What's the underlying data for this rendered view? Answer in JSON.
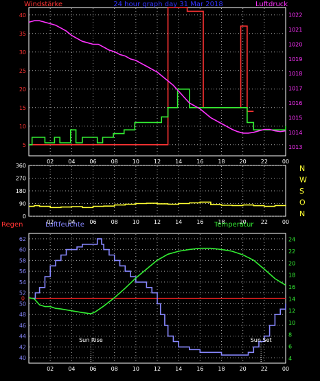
{
  "colors": {
    "background": "#000000",
    "frame": "#ffffff",
    "grid": "#aaaaaa",
    "wind": "#ff3333",
    "pressure": "#ff33ff",
    "green": "#33ee33",
    "direction": "#ffff33",
    "humidity": "#8888ff",
    "rain": "#ff2222",
    "title": "#3333ff",
    "label_red": "#ff3333",
    "label_magenta": "#ff33ff",
    "label_blue": "#8888ff",
    "label_green": "#33ee33",
    "label_yellow": "#ffff33",
    "white": "#ffffff"
  },
  "chart_data": [
    {
      "type": "line",
      "title": "24 hour graph day 31 Mar 2018",
      "left_label": "Windstärke",
      "right_label": "Luftdruck",
      "x_ticks": [
        "02",
        "04",
        "06",
        "08",
        "10",
        "12",
        "14",
        "16",
        "18",
        "20",
        "22",
        "00"
      ],
      "x_range": [
        0,
        24
      ],
      "y_left_ticks": [
        "5",
        "10",
        "15",
        "20",
        "25",
        "30",
        "35",
        "40"
      ],
      "y_left_range": [
        2,
        42
      ],
      "y_right_ticks": [
        "1013",
        "1014",
        "1015",
        "1016",
        "1017",
        "1018",
        "1019",
        "1020",
        "1021",
        "1022"
      ],
      "y_right_range": [
        1012.4,
        1022.5
      ],
      "series": [
        {
          "key": "wind_max",
          "axis": "left",
          "style": "step",
          "points": [
            [
              0,
              5
            ],
            [
              13,
              5
            ],
            [
              13,
              42
            ],
            [
              14.8,
              42
            ],
            [
              14.8,
              41
            ],
            [
              16.3,
              41
            ],
            [
              16.3,
              15
            ],
            [
              19.8,
              15
            ],
            [
              19.8,
              37
            ],
            [
              20.4,
              37
            ],
            [
              20.4,
              14
            ],
            [
              21,
              14
            ]
          ]
        },
        {
          "key": "wind_avg",
          "axis": "left",
          "style": "step",
          "points": [
            [
              0,
              5
            ],
            [
              0.3,
              5
            ],
            [
              0.3,
              7
            ],
            [
              1.5,
              7
            ],
            [
              1.5,
              5.5
            ],
            [
              2.4,
              5.5
            ],
            [
              2.4,
              7
            ],
            [
              2.9,
              7
            ],
            [
              2.9,
              5.5
            ],
            [
              3.9,
              5.5
            ],
            [
              3.9,
              9
            ],
            [
              4.4,
              9
            ],
            [
              4.4,
              5.5
            ],
            [
              5,
              5.5
            ],
            [
              5,
              7
            ],
            [
              6.4,
              7
            ],
            [
              6.4,
              5.5
            ],
            [
              6.9,
              5.5
            ],
            [
              6.9,
              7
            ],
            [
              7.9,
              7
            ],
            [
              7.9,
              8
            ],
            [
              8.9,
              8
            ],
            [
              8.9,
              9
            ],
            [
              9.9,
              9
            ],
            [
              9.9,
              11
            ],
            [
              12.4,
              11
            ],
            [
              12.4,
              12.5
            ],
            [
              13,
              12.5
            ],
            [
              13,
              15
            ],
            [
              13.9,
              15
            ],
            [
              13.9,
              20
            ],
            [
              15,
              20
            ],
            [
              15,
              15
            ],
            [
              20.4,
              15
            ],
            [
              20.4,
              11
            ],
            [
              21,
              11
            ],
            [
              21,
              9
            ],
            [
              24,
              9
            ],
            [
              24,
              10
            ]
          ]
        },
        {
          "key": "pressure",
          "axis": "right",
          "style": "line",
          "points": [
            [
              0,
              1021.5
            ],
            [
              0.5,
              1021.6
            ],
            [
              1,
              1021.6
            ],
            [
              1.5,
              1021.5
            ],
            [
              2,
              1021.4
            ],
            [
              2.5,
              1021.3
            ],
            [
              3,
              1021.1
            ],
            [
              3.5,
              1020.9
            ],
            [
              4,
              1020.6
            ],
            [
              4.5,
              1020.4
            ],
            [
              5,
              1020.2
            ],
            [
              5.5,
              1020.1
            ],
            [
              6,
              1020.0
            ],
            [
              6.5,
              1020.0
            ],
            [
              7,
              1019.8
            ],
            [
              7.5,
              1019.6
            ],
            [
              8,
              1019.5
            ],
            [
              8.5,
              1019.3
            ],
            [
              9,
              1019.2
            ],
            [
              9.5,
              1019.0
            ],
            [
              10,
              1018.9
            ],
            [
              10.5,
              1018.7
            ],
            [
              11,
              1018.5
            ],
            [
              11.5,
              1018.3
            ],
            [
              12,
              1018.1
            ],
            [
              12.5,
              1017.8
            ],
            [
              13,
              1017.5
            ],
            [
              13.5,
              1017.2
            ],
            [
              14,
              1016.8
            ],
            [
              14.5,
              1016.4
            ],
            [
              15,
              1016.0
            ],
            [
              15.5,
              1015.8
            ],
            [
              16,
              1015.6
            ],
            [
              16.5,
              1015.3
            ],
            [
              17,
              1015.0
            ],
            [
              17.5,
              1014.8
            ],
            [
              18,
              1014.6
            ],
            [
              18.5,
              1014.4
            ],
            [
              19,
              1014.2
            ],
            [
              19.5,
              1014.05
            ],
            [
              20,
              1013.95
            ],
            [
              20.5,
              1013.95
            ],
            [
              21,
              1014.0
            ],
            [
              21.5,
              1014.1
            ],
            [
              22,
              1014.2
            ],
            [
              22.5,
              1014.2
            ],
            [
              23,
              1014.1
            ],
            [
              23.5,
              1014.05
            ],
            [
              24,
              1014.1
            ]
          ]
        }
      ]
    },
    {
      "type": "line",
      "title": "",
      "x_ticks": [
        "02",
        "04",
        "06",
        "08",
        "10",
        "12",
        "14",
        "16",
        "18",
        "20",
        "22",
        "00"
      ],
      "x_range": [
        0,
        24
      ],
      "y_left_ticks": [
        "0",
        "90",
        "180",
        "270",
        "360"
      ],
      "y_left_range": [
        0,
        360
      ],
      "right_labels": [
        "N",
        "W",
        "S",
        "O",
        "N"
      ],
      "series": [
        {
          "key": "direction",
          "axis": "left",
          "style": "step",
          "points": [
            [
              0,
              70
            ],
            [
              0.5,
              75
            ],
            [
              1,
              70
            ],
            [
              2,
              62
            ],
            [
              3,
              65
            ],
            [
              4,
              68
            ],
            [
              5,
              62
            ],
            [
              6,
              70
            ],
            [
              7,
              72
            ],
            [
              8,
              80
            ],
            [
              9,
              85
            ],
            [
              10,
              90
            ],
            [
              11,
              92
            ],
            [
              12,
              88
            ],
            [
              13,
              85
            ],
            [
              14,
              90
            ],
            [
              15,
              95
            ],
            [
              16,
              100
            ],
            [
              17,
              82
            ],
            [
              18,
              78
            ],
            [
              19,
              76
            ],
            [
              20,
              80
            ],
            [
              21,
              75
            ],
            [
              22,
              70
            ],
            [
              23,
              76
            ],
            [
              24,
              78
            ]
          ]
        }
      ]
    },
    {
      "type": "line",
      "title": "",
      "left_label": "Regen",
      "humidity_label": "Luftfeuchte",
      "right_label": "Temperatur",
      "x_ticks": [
        "02",
        "04",
        "06",
        "08",
        "10",
        "12",
        "14",
        "16",
        "18",
        "20",
        "22",
        "00"
      ],
      "x_range": [
        0,
        24
      ],
      "y_left_ticks": [
        "40",
        "42",
        "44",
        "46",
        "48",
        "50",
        "52",
        "54",
        "56",
        "58",
        "60",
        "62"
      ],
      "y_left_range": [
        39,
        63
      ],
      "rain_marker": "0",
      "y_right_ticks": [
        "4",
        "6",
        "8",
        "10",
        "12",
        "14",
        "16",
        "18",
        "20",
        "22",
        "24"
      ],
      "y_right_range": [
        3.2,
        25
      ],
      "annotations": [
        {
          "x": 5.8,
          "text": "Sun Rise"
        },
        {
          "x": 21.7,
          "text": "Sun Set"
        }
      ],
      "series": [
        {
          "key": "rain",
          "axis": "left",
          "style": "line",
          "points": [
            [
              0,
              51
            ],
            [
              24,
              51
            ]
          ]
        },
        {
          "key": "humidity",
          "axis": "left",
          "style": "step",
          "points": [
            [
              0.3,
              51
            ],
            [
              0.6,
              52
            ],
            [
              1,
              53
            ],
            [
              1.5,
              55
            ],
            [
              2,
              57
            ],
            [
              2.5,
              58
            ],
            [
              3,
              59
            ],
            [
              3.5,
              60
            ],
            [
              4,
              60
            ],
            [
              4.5,
              60.5
            ],
            [
              5,
              61
            ],
            [
              5.5,
              61
            ],
            [
              6,
              61
            ],
            [
              6.4,
              62
            ],
            [
              6.8,
              61
            ],
            [
              7,
              60
            ],
            [
              7.5,
              59
            ],
            [
              8,
              58
            ],
            [
              8.5,
              57
            ],
            [
              9,
              56
            ],
            [
              9.5,
              55
            ],
            [
              10,
              54
            ],
            [
              10.5,
              54
            ],
            [
              11,
              53
            ],
            [
              11.5,
              52
            ],
            [
              12,
              50
            ],
            [
              12.3,
              48
            ],
            [
              12.7,
              46
            ],
            [
              13,
              44
            ],
            [
              13.5,
              43
            ],
            [
              14,
              42
            ],
            [
              14.5,
              42
            ],
            [
              15,
              41.5
            ],
            [
              16,
              41
            ],
            [
              17,
              41
            ],
            [
              18,
              40.5
            ],
            [
              19,
              40.5
            ],
            [
              20,
              40.5
            ],
            [
              20.5,
              41
            ],
            [
              21,
              42
            ],
            [
              21.5,
              43
            ],
            [
              22,
              44
            ],
            [
              22.5,
              46
            ],
            [
              23,
              48
            ],
            [
              23.5,
              49
            ],
            [
              24,
              50
            ]
          ]
        },
        {
          "key": "temperature",
          "axis": "right",
          "style": "line",
          "points": [
            [
              0,
              14.2
            ],
            [
              0.5,
              14
            ],
            [
              1,
              13
            ],
            [
              1.5,
              12.7
            ],
            [
              2,
              12.7
            ],
            [
              2.5,
              12.4
            ],
            [
              3,
              12.3
            ],
            [
              4,
              12
            ],
            [
              5,
              11.7
            ],
            [
              5.8,
              11.5
            ],
            [
              6.2,
              11.8
            ],
            [
              7,
              12.8
            ],
            [
              8,
              14.2
            ],
            [
              9,
              15.8
            ],
            [
              10,
              17.5
            ],
            [
              11,
              19
            ],
            [
              12,
              20.5
            ],
            [
              13,
              21.5
            ],
            [
              14,
              22
            ],
            [
              15,
              22.3
            ],
            [
              16,
              22.5
            ],
            [
              17,
              22.5
            ],
            [
              18,
              22.3
            ],
            [
              19,
              22
            ],
            [
              20,
              21.4
            ],
            [
              21,
              20.5
            ],
            [
              22,
              19
            ],
            [
              23,
              17.4
            ],
            [
              24,
              16.3
            ]
          ]
        }
      ]
    }
  ]
}
